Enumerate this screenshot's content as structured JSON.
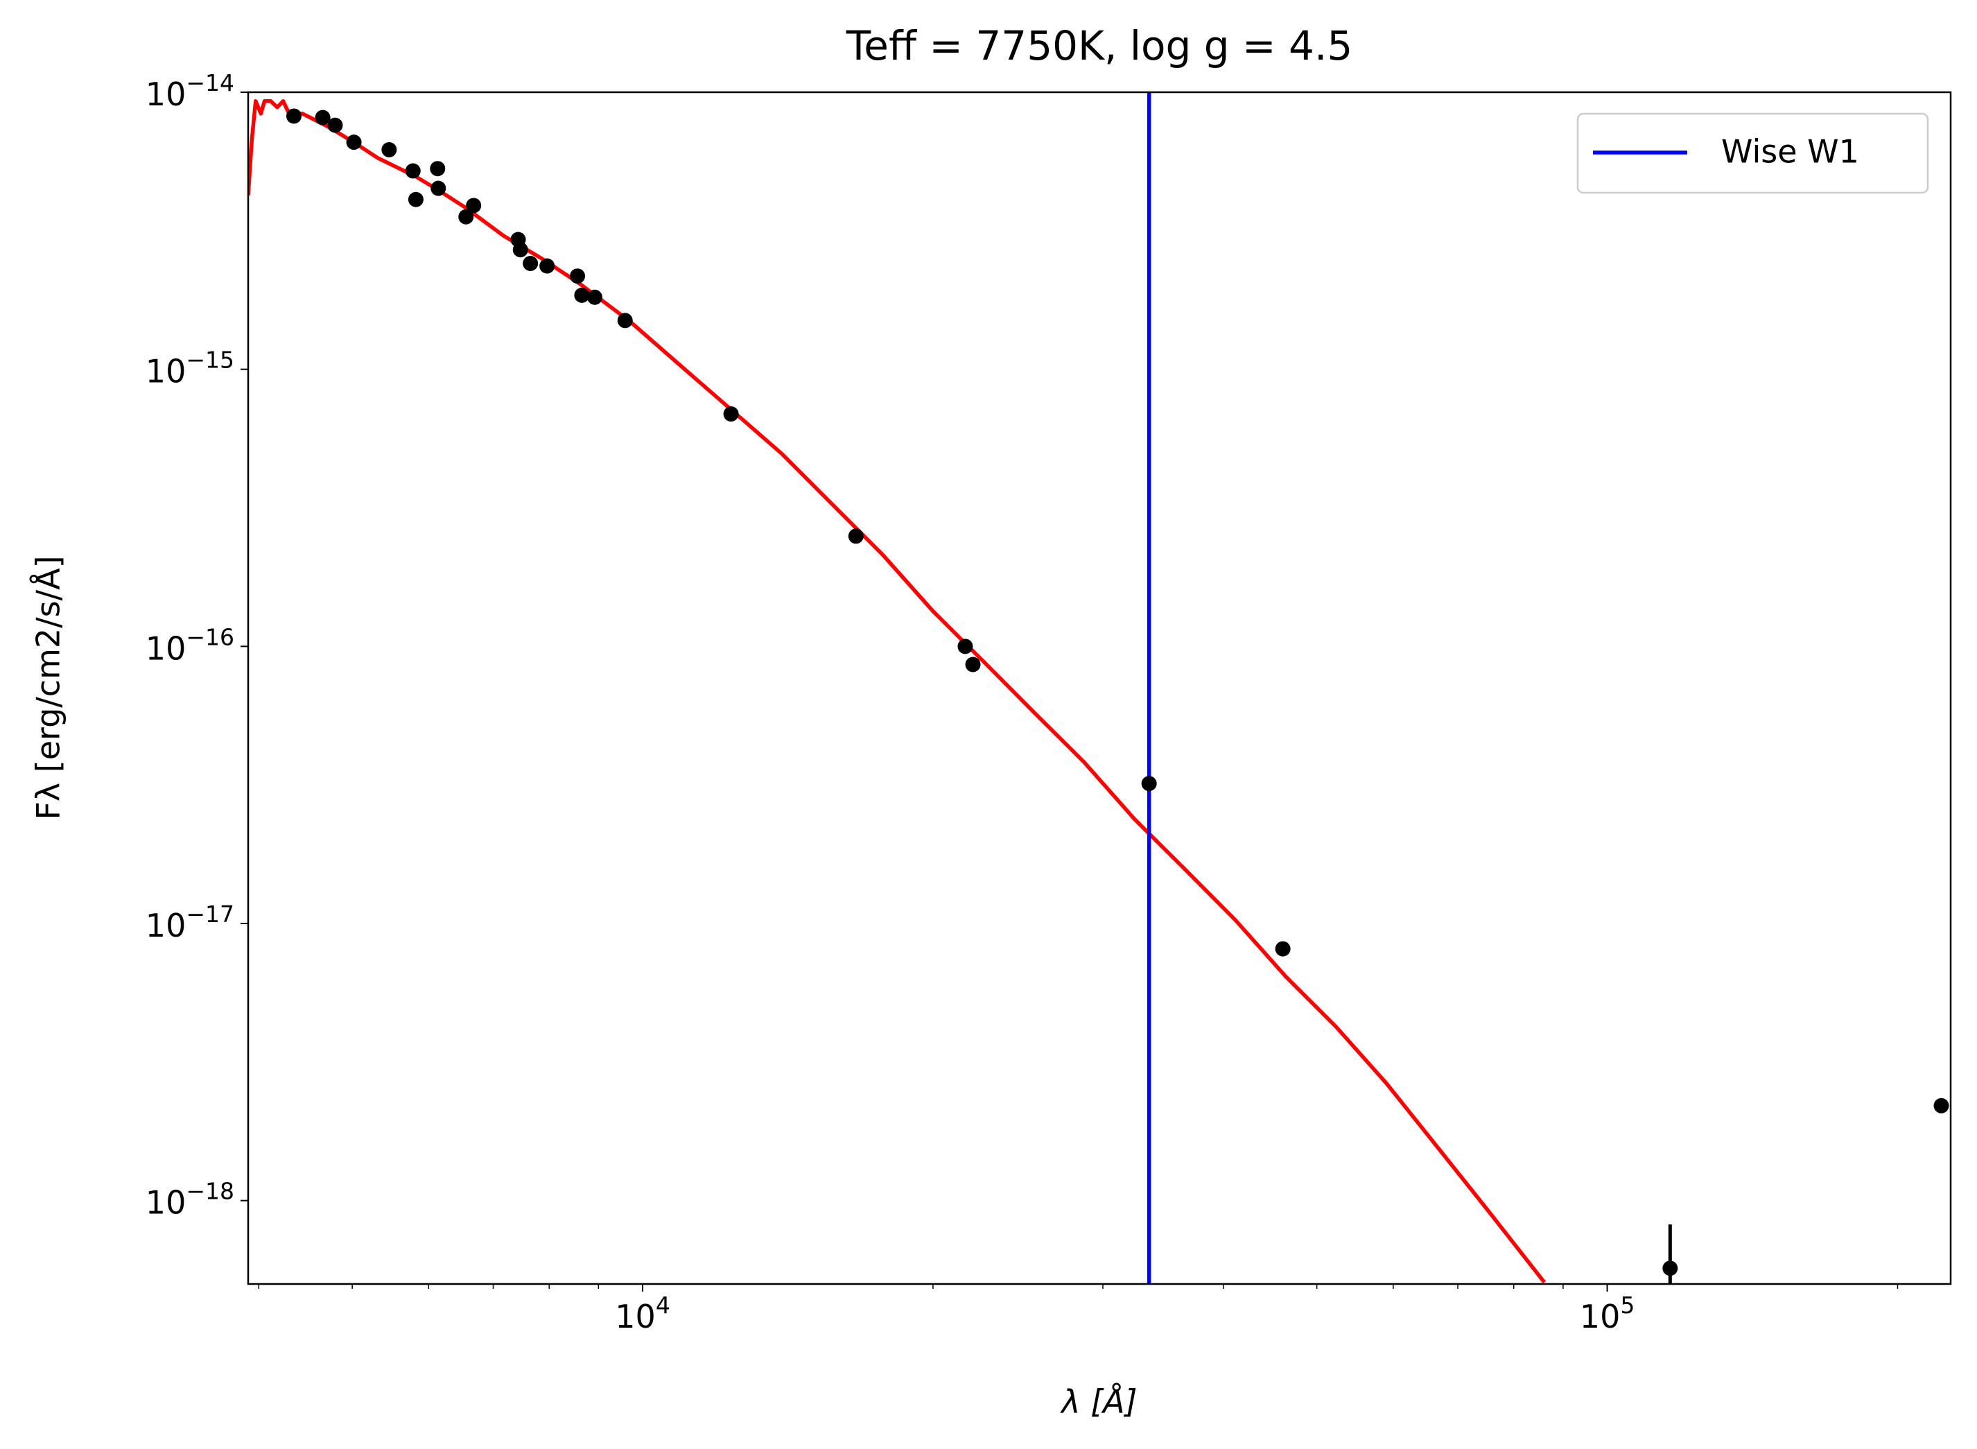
{
  "chart_data": {
    "type": "scatter",
    "title": "Teff = 7750K, log g = 4.5",
    "x_label": "λ [Å]",
    "y_label": "Fλ [erg/cm2/s/Å]",
    "xscale": "log",
    "yscale": "log",
    "xlim": [
      3900,
      227000
    ],
    "ylim": [
      5e-19,
      1e-14
    ],
    "xticks": [
      {
        "value": 10000,
        "label": "104"
      },
      {
        "value": 100000,
        "label": "105"
      }
    ],
    "xminor": [
      4000,
      5000,
      6000,
      7000,
      8000,
      9000,
      20000,
      30000,
      40000,
      50000,
      60000,
      70000,
      80000,
      90000,
      200000
    ],
    "yticks": [
      {
        "value": 1e-18,
        "label": "10−18"
      },
      {
        "value": 1e-17,
        "label": "10−17"
      },
      {
        "value": 1e-16,
        "label": "10−16"
      },
      {
        "value": 1e-15,
        "label": "10−15"
      },
      {
        "value": 1e-14,
        "label": "10−14"
      }
    ],
    "legend": "upper right",
    "model": {
      "color": "#ff0000",
      "x": [
        3900,
        3935,
        3970,
        4020,
        4055,
        4115,
        4180,
        4240,
        4300,
        4440,
        4710,
        5000,
        5310,
        5820,
        6180,
        6560,
        7180,
        7860,
        8600,
        9700,
        10950,
        12350,
        13940,
        15720,
        17720,
        20000,
        22560,
        25430,
        28690,
        32360,
        36490,
        41150,
        46410,
        52340,
        59030,
        66570,
        75080,
        86070
      ],
      "y": [
        4.24e-15,
        6.79e-15,
        9.29e-15,
        8.37e-15,
        9.29e-15,
        9.29e-15,
        8.82e-15,
        9.29e-15,
        8.37e-15,
        8.37e-15,
        7.54e-15,
        6.65e-15,
        5.8e-15,
        4.96e-15,
        4.37e-15,
        3.82e-15,
        3.03e-15,
        2.51e-15,
        2.04e-15,
        1.49e-15,
        1.03e-15,
        7.16e-16,
        4.96e-16,
        3.26e-16,
        2.15e-16,
        1.34e-16,
        8.82e-17,
        5.8e-17,
        3.82e-17,
        2.38e-17,
        1.57e-17,
        1.03e-17,
        6.44e-18,
        4.24e-18,
        2.65e-18,
        1.57e-18,
        9.29e-19,
        5.07e-19
      ]
    },
    "photometry": {
      "color": "#000000",
      "x": [
        4350,
        4660,
        4800,
        5020,
        5460,
        5780,
        5820,
        6130,
        6140,
        6560,
        6680,
        7430,
        7470,
        7650,
        7960,
        8560,
        8650,
        8920,
        9590,
        12350,
        16640,
        21600,
        22000,
        33500,
        46100,
        116200,
        222000
      ],
      "y": [
        8.2e-15,
        8.1e-15,
        7.6e-15,
        6.6e-15,
        6.2e-15,
        5.2e-15,
        4.1e-15,
        5.3e-15,
        4.5e-15,
        3.55e-15,
        3.9e-15,
        2.94e-15,
        2.7e-15,
        2.41e-15,
        2.36e-15,
        2.17e-15,
        1.85e-15,
        1.82e-15,
        1.5e-15,
        6.9e-16,
        2.5e-16,
        1e-16,
        8.6e-17,
        3.2e-17,
        8.1e-18,
        5.7e-19,
        2.2e-18
      ],
      "yerr": [
        null,
        null,
        null,
        null,
        null,
        null,
        null,
        null,
        null,
        null,
        null,
        null,
        null,
        null,
        null,
        null,
        null,
        null,
        null,
        null,
        null,
        null,
        null,
        null,
        null,
        2.5e-19,
        null
      ]
    },
    "vlines": [
      {
        "name": "Wise W1",
        "color": "#0000ff",
        "x": 33500
      }
    ]
  }
}
